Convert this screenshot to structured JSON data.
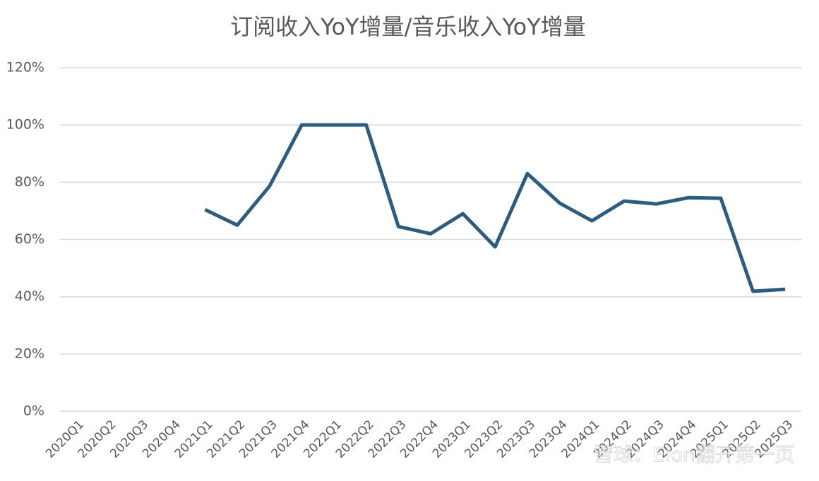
{
  "chart_data": {
    "type": "line",
    "title": "订阅收入YoY增量/音乐收入YoY增量",
    "categories": [
      "2020Q1",
      "2020Q2",
      "2020Q3",
      "2020Q4",
      "2021Q1",
      "2021Q2",
      "2021Q3",
      "2021Q4",
      "2022Q1",
      "2022Q2",
      "2022Q3",
      "2022Q4",
      "2023Q1",
      "2023Q2",
      "2023Q3",
      "2023Q4",
      "2024Q1",
      "2024Q2",
      "2024Q3",
      "2024Q4",
      "2025Q1",
      "2025Q2",
      "2025Q3"
    ],
    "values": [
      null,
      null,
      null,
      null,
      70.4,
      65,
      78.6,
      100,
      100,
      100,
      64.5,
      62,
      69,
      57.4,
      83,
      72.7,
      66.5,
      73.4,
      72.4,
      74.6,
      74.4,
      41.9,
      42.6
    ],
    "color": "#2e5c7e",
    "ylim": [
      0,
      120
    ],
    "yticks": [
      {
        "value": 0,
        "label": "0%"
      },
      {
        "value": 20,
        "label": "20%"
      },
      {
        "value": 40,
        "label": "40%"
      },
      {
        "value": 60,
        "label": "60%"
      },
      {
        "value": 80,
        "label": "80%"
      },
      {
        "value": 100,
        "label": "100%"
      },
      {
        "value": 120,
        "label": "120%"
      }
    ],
    "grid": true,
    "watermark": "雪球：Elon翻开第一页"
  }
}
